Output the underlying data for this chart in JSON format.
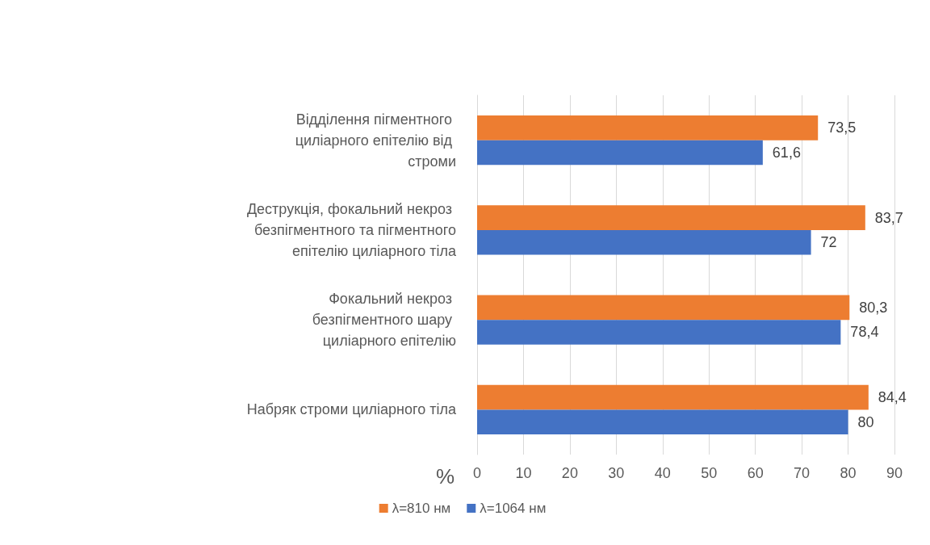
{
  "chart_data": {
    "type": "bar",
    "orientation": "horizontal",
    "xlabel": "%",
    "categories": [
      "Відділення пігментного циліарного епітелію від строми",
      "Деструкція, фокальний некроз безпігментного та пігментного епітелію циліарного тіла",
      "Фокальний некроз безпігментного шару циліарного епітелію",
      "Набряк строми циліарного тіла"
    ],
    "series": [
      {
        "name": "λ=810 нм",
        "color": "#ed7d31",
        "values": [
          73.5,
          83.7,
          80.3,
          84.4
        ],
        "value_labels": [
          "73,5",
          "83,7",
          "80,3",
          "84,4"
        ]
      },
      {
        "name": "λ=1064 нм",
        "color": "#4472c4",
        "values": [
          61.6,
          72,
          78.4,
          80
        ],
        "value_labels": [
          "61,6",
          "72",
          "78,4",
          "80"
        ]
      }
    ],
    "xlim": [
      0,
      90
    ],
    "xticks": [
      0,
      10,
      20,
      30,
      40,
      50,
      60,
      70,
      80,
      90
    ],
    "grid": "x",
    "legend": "bottom"
  }
}
